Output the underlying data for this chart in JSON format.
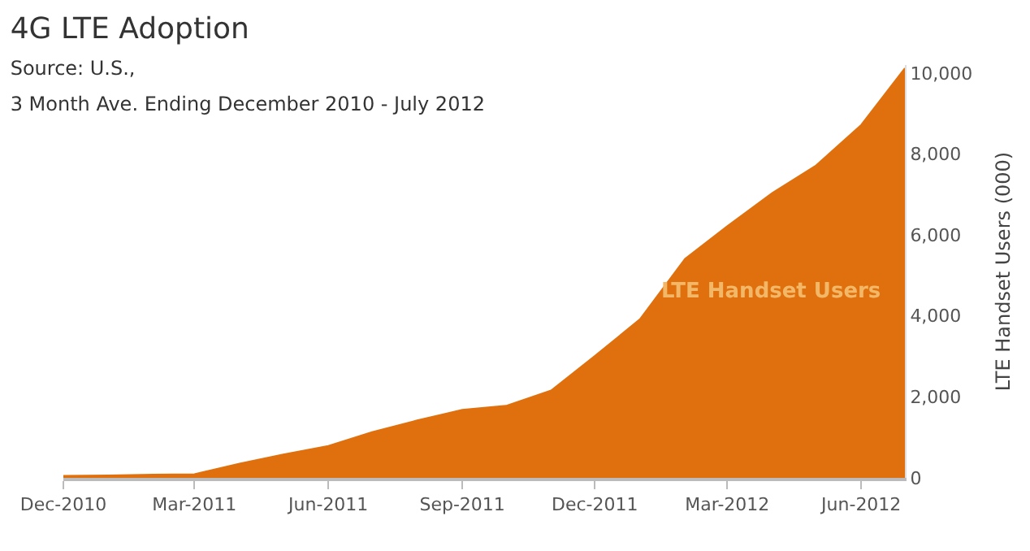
{
  "chart_data": {
    "type": "area",
    "title": "4G LTE Adoption",
    "subtitle": "Source: U.S.,\n3 Month Ave. Ending December 2010 - July 2012",
    "ylabel": "LTE Handset Users (000)",
    "x": [
      "2010-12",
      "2011-01",
      "2011-02",
      "2011-03",
      "2011-04",
      "2011-05",
      "2011-06",
      "2011-07",
      "2011-08",
      "2011-09",
      "2011-10",
      "2011-11",
      "2011-12",
      "2012-01",
      "2012-02",
      "2012-03",
      "2012-04",
      "2012-05",
      "2012-06",
      "2012-07"
    ],
    "series": [
      {
        "name": "LTE Handset Users",
        "color": "#e0700d",
        "values": [
          50,
          60,
          80,
          90,
          350,
          580,
          790,
          1130,
          1420,
          1680,
          1780,
          2160,
          3010,
          3920,
          5410,
          6220,
          7040,
          7720,
          8720,
          10120
        ]
      }
    ],
    "xlim": [
      "2010-12",
      "2012-07"
    ],
    "xticks": [
      {
        "value": "2010-12",
        "label": "Dec-2010"
      },
      {
        "value": "2011-03",
        "label": "Mar-2011"
      },
      {
        "value": "2011-06",
        "label": "Jun-2011"
      },
      {
        "value": "2011-09",
        "label": "Sep-2011"
      },
      {
        "value": "2011-12",
        "label": "Dec-2011"
      },
      {
        "value": "2012-03",
        "label": "Mar-2012"
      },
      {
        "value": "2012-06",
        "label": "Jun-2012"
      }
    ],
    "ylim": [
      0,
      10200
    ],
    "yticks": [
      {
        "value": 0,
        "label": "0"
      },
      {
        "value": 2000,
        "label": "2,000"
      },
      {
        "value": 4000,
        "label": "4,000"
      },
      {
        "value": 6000,
        "label": "6,000"
      },
      {
        "value": 8000,
        "label": "8,000"
      },
      {
        "value": 10000,
        "label": "10,000"
      }
    ],
    "legend": false
  }
}
